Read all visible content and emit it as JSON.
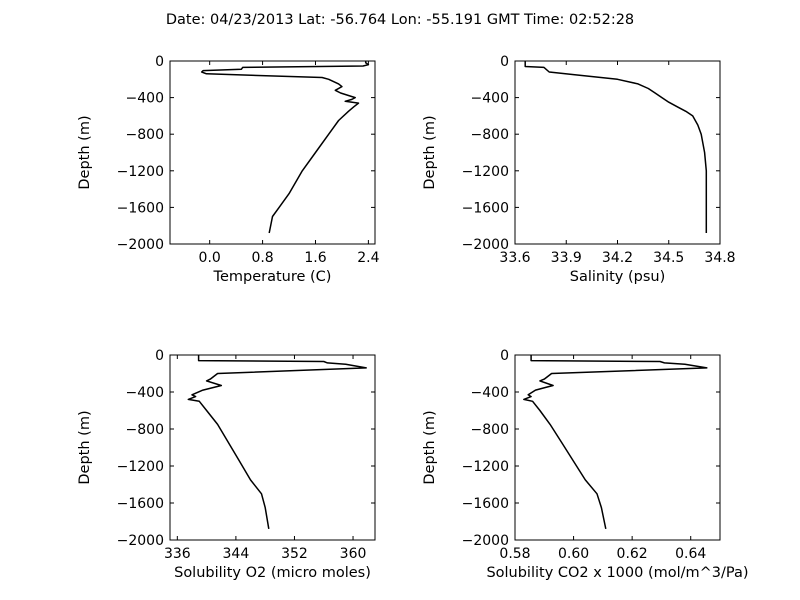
{
  "figure": {
    "title": "Date: 04/23/2013  Lat:  -56.764 Lon:  -55.191  GMT Time: 02:52:28"
  },
  "chart_data": [
    {
      "type": "line",
      "xlabel": "Temperature (C)",
      "ylabel": "Depth (m)",
      "xlim": [
        -0.6,
        2.5
      ],
      "ylim": [
        -2000,
        0
      ],
      "xticks": [
        0.0,
        0.8,
        1.6,
        2.4
      ],
      "xtick_labels": [
        "0.0",
        "0.8",
        "1.6",
        "2.4"
      ],
      "yticks": [
        0,
        -400,
        -800,
        -1200,
        -1600,
        -2000
      ],
      "ytick_labels": [
        "0",
        "−400",
        "−800",
        "−1200",
        "−1600",
        "−2000"
      ],
      "series": [
        {
          "x": [
            2.36,
            2.36,
            2.4,
            2.32,
            0.5,
            0.48,
            -0.1,
            -0.12,
            -0.05,
            1.7,
            1.8,
            1.95,
            2.0,
            1.9,
            1.98,
            2.2,
            2.15,
            2.05,
            2.25,
            2.18,
            2.1,
            1.95,
            1.8,
            1.6,
            1.4,
            1.2,
            1.05,
            0.95,
            0.9
          ],
          "y": [
            0,
            -20,
            -40,
            -55,
            -70,
            -90,
            -105,
            -120,
            -140,
            -180,
            -200,
            -250,
            -280,
            -320,
            -350,
            -400,
            -420,
            -440,
            -460,
            -500,
            -550,
            -650,
            -800,
            -1000,
            -1200,
            -1450,
            -1600,
            -1700,
            -1880
          ]
        }
      ]
    },
    {
      "type": "line",
      "xlabel": "Salinity (psu)",
      "ylabel": "Depth (m)",
      "xlim": [
        33.6,
        34.8
      ],
      "ylim": [
        -2000,
        0
      ],
      "xticks": [
        33.6,
        33.9,
        34.2,
        34.5,
        34.8
      ],
      "xtick_labels": [
        "33.6",
        "33.9",
        "34.2",
        "34.5",
        "34.8"
      ],
      "yticks": [
        0,
        -400,
        -800,
        -1200,
        -1600,
        -2000
      ],
      "ytick_labels": [
        "0",
        "−400",
        "−800",
        "−1200",
        "−1600",
        "−2000"
      ],
      "series": [
        {
          "x": [
            33.66,
            33.66,
            33.77,
            33.8,
            33.95,
            34.2,
            34.32,
            34.38,
            34.42,
            34.46,
            34.5,
            34.55,
            34.6,
            34.64,
            34.67,
            34.69,
            34.7,
            34.71,
            34.72,
            34.72
          ],
          "y": [
            0,
            -60,
            -70,
            -120,
            -150,
            -200,
            -250,
            -300,
            -350,
            -400,
            -450,
            -500,
            -550,
            -600,
            -700,
            -800,
            -900,
            -1000,
            -1200,
            -1880
          ]
        }
      ]
    },
    {
      "type": "line",
      "xlabel": "Solubility O2 (micro moles)",
      "ylabel": "Depth (m)",
      "xlim": [
        335,
        363
      ],
      "ylim": [
        -2000,
        0
      ],
      "xticks": [
        336,
        344,
        352,
        360
      ],
      "xtick_labels": [
        "336",
        "344",
        "352",
        "360"
      ],
      "yticks": [
        0,
        -400,
        -800,
        -1200,
        -1600,
        -2000
      ],
      "ytick_labels": [
        "0",
        "−400",
        "−800",
        "−1200",
        "−1600",
        "−2000"
      ],
      "series": [
        {
          "x": [
            338.9,
            338.9,
            356.0,
            356.5,
            359.0,
            361.8,
            341.5,
            340.5,
            340.0,
            342.0,
            341.0,
            339.5,
            338.0,
            338.5,
            337.5,
            339.0,
            340.0,
            341.5,
            343.0,
            344.5,
            346.0,
            347.5,
            348.0,
            348.5
          ],
          "y": [
            0,
            -60,
            -70,
            -85,
            -100,
            -140,
            -200,
            -260,
            -280,
            -330,
            -350,
            -380,
            -430,
            -450,
            -480,
            -500,
            -600,
            -750,
            -950,
            -1150,
            -1350,
            -1500,
            -1650,
            -1880
          ]
        }
      ]
    },
    {
      "type": "line",
      "xlabel": "Solubility CO2 x 1000 (mol/m^3/Pa)",
      "ylabel": "Depth (m)",
      "xlim": [
        0.58,
        0.65
      ],
      "ylim": [
        -2000,
        0
      ],
      "xticks": [
        0.58,
        0.6,
        0.62,
        0.64
      ],
      "xtick_labels": [
        "0.58",
        "0.60",
        "0.62",
        "0.64"
      ],
      "yticks": [
        0,
        -400,
        -800,
        -1200,
        -1600,
        -2000
      ],
      "ytick_labels": [
        "0",
        "−400",
        "−800",
        "−1200",
        "−1600",
        "−2000"
      ],
      "series": [
        {
          "x": [
            0.5855,
            0.5855,
            0.6295,
            0.631,
            0.638,
            0.6455,
            0.5925,
            0.59,
            0.5885,
            0.593,
            0.5905,
            0.587,
            0.5845,
            0.5855,
            0.583,
            0.586,
            0.5885,
            0.592,
            0.596,
            0.6,
            0.604,
            0.608,
            0.6095,
            0.611
          ],
          "y": [
            0,
            -60,
            -70,
            -85,
            -100,
            -140,
            -200,
            -260,
            -280,
            -330,
            -350,
            -380,
            -430,
            -450,
            -480,
            -500,
            -600,
            -750,
            -950,
            -1150,
            -1350,
            -1500,
            -1650,
            -1880
          ]
        }
      ]
    }
  ]
}
